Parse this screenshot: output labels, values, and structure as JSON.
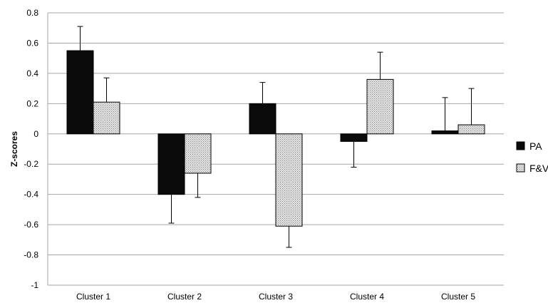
{
  "chart_data": {
    "type": "bar",
    "title": "",
    "xlabel": "",
    "ylabel": "Z-scores",
    "categories": [
      "Cluster 1",
      "Cluster 2",
      "Cluster 3",
      "Cluster 4",
      "Cluster 5"
    ],
    "ylim": [
      -1,
      0.8
    ],
    "yticks": [
      0.8,
      0.6,
      0.4,
      0.2,
      0,
      -0.2,
      -0.4,
      -0.6,
      -0.8,
      -1
    ],
    "grid": true,
    "legend_position": "right",
    "error_bars": "one-sided (direction away from zero)",
    "series": [
      {
        "name": "PA",
        "color": "#0a0a0a",
        "fill": "solid",
        "values": [
          0.55,
          -0.4,
          0.2,
          -0.05,
          0.02
        ],
        "errors": [
          0.16,
          0.19,
          0.14,
          0.17,
          0.22
        ]
      },
      {
        "name": "F&V",
        "color": "#d0d0d0",
        "fill": "dotted",
        "values": [
          0.21,
          -0.26,
          -0.61,
          0.36,
          0.06
        ],
        "errors": [
          0.16,
          0.16,
          0.14,
          0.18,
          0.24
        ]
      }
    ]
  }
}
